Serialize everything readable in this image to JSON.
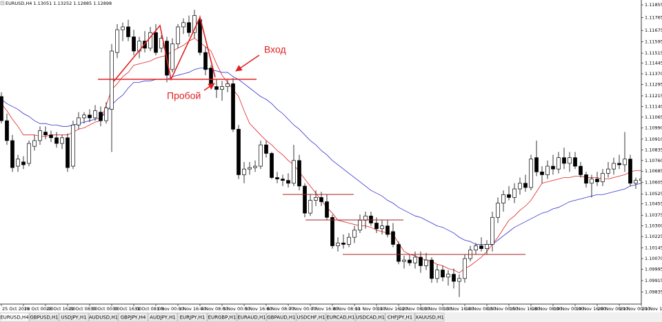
{
  "header": "EURUSD,H4  1.13051 1.13252 1.12885 1.12898",
  "tabs": [
    "EURUSD,H4",
    "GBPUSD,H1",
    "USDJPY,H1",
    "AUDUSD,H1",
    "GBPJPY,H4",
    "AUDJPY,H1",
    "EURJPY,H1",
    "EURGBP,H1",
    "EURAUD,H1",
    "GBPAUD,H1",
    "USDCHF,H1",
    "EURCAD,H1",
    "USDCAD,H1",
    "CHFJPY,H1",
    "XAUUSD,H1"
  ],
  "chart_data": {
    "type": "candlestick",
    "annotations": [
      "Вход",
      "Пробой"
    ],
    "categories": [
      "25 Oct 2019",
      null,
      null,
      null,
      "28 Oct 00:00",
      null,
      null,
      null,
      "28 Oct 16:00",
      null,
      null,
      null,
      "29 Oct 08:00",
      null,
      null,
      null,
      "30 Oct 00:00",
      null,
      null,
      null,
      "30 Oct 16:00",
      null,
      null,
      null,
      "31 Oct 08:00",
      null,
      null,
      null,
      "1 Nov 00:00",
      null,
      null,
      null,
      "1 Nov 16:00",
      null,
      null,
      null,
      "4 Nov 08:00",
      null,
      null,
      null,
      "5 Nov 00:00",
      null,
      null,
      null,
      "5 Nov 16:00",
      null,
      null,
      null,
      "6 Nov 08:00",
      null,
      null,
      null,
      "7 Nov 00:00",
      null,
      null,
      null,
      "7 Nov 16:00",
      null,
      null,
      null,
      "8 Nov 08:00",
      null,
      null,
      null,
      "11 Nov 00:00",
      null,
      null,
      null,
      "11 Nov 16:00",
      null,
      null,
      null,
      "12 Nov 08:00",
      null,
      null,
      null,
      "13 Nov 00:00",
      null,
      null,
      null,
      "13 Nov 16:00",
      null,
      null,
      null,
      "14 Nov 08:00",
      null,
      null,
      null,
      "15 Nov 00:00",
      null,
      null,
      null,
      "15 Nov 16:00",
      null,
      null,
      null,
      "18 Nov 08:00",
      null,
      null,
      null,
      "19 Nov 00:00",
      null,
      null,
      null,
      "19 Nov 16:00",
      null,
      null,
      null,
      "20 Nov 08:00",
      null,
      null,
      null,
      "21 Nov 00:00",
      null,
      null,
      null,
      "21 Nov 16:00"
    ],
    "ohlc": [
      [
        1.1121,
        1.1124,
        1.1102,
        1.1104
      ],
      [
        1.1104,
        1.1109,
        1.1087,
        1.109
      ],
      [
        1.109,
        1.1094,
        1.1068,
        1.1071
      ],
      [
        1.1072,
        1.108,
        1.1068,
        1.1077
      ],
      [
        1.1075,
        1.1079,
        1.107,
        1.1073
      ],
      [
        1.1074,
        1.109,
        1.1072,
        1.1088
      ],
      [
        1.1086,
        1.1094,
        1.1083,
        1.109
      ],
      [
        1.109,
        1.11,
        1.1087,
        1.1097
      ],
      [
        1.1096,
        1.11,
        1.1091,
        1.1094
      ],
      [
        1.1094,
        1.1097,
        1.1089,
        1.1092
      ],
      [
        1.1092,
        1.1096,
        1.1085,
        1.1088
      ],
      [
        1.1088,
        1.1094,
        1.1084,
        1.1092
      ],
      [
        1.1092,
        1.1095,
        1.1068,
        1.1071
      ],
      [
        1.1072,
        1.1104,
        1.107,
        1.1101
      ],
      [
        1.1101,
        1.111,
        1.1098,
        1.1106
      ],
      [
        1.1106,
        1.111,
        1.1102,
        1.1108
      ],
      [
        1.1108,
        1.1112,
        1.1103,
        1.1106
      ],
      [
        1.1106,
        1.1115,
        1.1104,
        1.1111
      ],
      [
        1.111,
        1.1114,
        1.11,
        1.1104
      ],
      [
        1.1104,
        1.1117,
        1.1102,
        1.1113
      ],
      [
        1.1112,
        1.1158,
        1.1082,
        1.1153
      ],
      [
        1.1152,
        1.1172,
        1.1148,
        1.1168
      ],
      [
        1.1168,
        1.1173,
        1.116,
        1.117
      ],
      [
        1.117,
        1.1175,
        1.116,
        1.1163
      ],
      [
        1.1163,
        1.1168,
        1.115,
        1.1153
      ],
      [
        1.1153,
        1.1163,
        1.1148,
        1.116
      ],
      [
        1.116,
        1.1167,
        1.1152,
        1.1155
      ],
      [
        1.1155,
        1.117,
        1.1153,
        1.1166
      ],
      [
        1.1166,
        1.1172,
        1.115,
        1.1152
      ],
      [
        1.1155,
        1.1164,
        1.1152,
        1.1162
      ],
      [
        1.116,
        1.1163,
        1.1131,
        1.1136
      ],
      [
        1.114,
        1.1162,
        1.1138,
        1.1158
      ],
      [
        1.1158,
        1.1172,
        1.1155,
        1.117
      ],
      [
        1.117,
        1.1176,
        1.1165,
        1.1173
      ],
      [
        1.1173,
        1.1178,
        1.1163,
        1.1166
      ],
      [
        1.1166,
        1.1182,
        1.1162,
        1.1178
      ],
      [
        1.1175,
        1.1178,
        1.115,
        1.1152
      ],
      [
        1.1152,
        1.1156,
        1.1136,
        1.114
      ],
      [
        1.1141,
        1.1143,
        1.1126,
        1.1128
      ],
      [
        1.1128,
        1.1133,
        1.112,
        1.1126
      ],
      [
        1.1126,
        1.1132,
        1.1118,
        1.1128
      ],
      [
        1.1128,
        1.1133,
        1.1124,
        1.113
      ],
      [
        1.113,
        1.1134,
        1.1096,
        1.1098
      ],
      [
        1.1098,
        1.1101,
        1.1063,
        1.1066
      ],
      [
        1.1066,
        1.1075,
        1.106,
        1.107
      ],
      [
        1.107,
        1.1075,
        1.1066,
        1.1071
      ],
      [
        1.1071,
        1.1076,
        1.1068,
        1.1072
      ],
      [
        1.1072,
        1.109,
        1.107,
        1.1087
      ],
      [
        1.1087,
        1.109,
        1.1078,
        1.1081
      ],
      [
        1.1081,
        1.1082,
        1.1063,
        1.1064
      ],
      [
        1.1064,
        1.1068,
        1.106,
        1.1063
      ],
      [
        1.1063,
        1.1066,
        1.1058,
        1.1062
      ],
      [
        1.1062,
        1.1067,
        1.1057,
        1.106
      ],
      [
        1.106,
        1.1087,
        1.1058,
        1.1076
      ],
      [
        1.1076,
        1.108,
        1.1055,
        1.1058
      ],
      [
        1.1058,
        1.106,
        1.1036,
        1.1039
      ],
      [
        1.1039,
        1.1052,
        1.1037,
        1.1048
      ],
      [
        1.1048,
        1.1055,
        1.1044,
        1.105
      ],
      [
        1.105,
        1.1054,
        1.1044,
        1.1047
      ],
      [
        1.1047,
        1.1052,
        1.1034,
        1.1036
      ],
      [
        1.1036,
        1.1038,
        1.1014,
        1.1016
      ],
      [
        1.1016,
        1.1022,
        1.1012,
        1.1018
      ],
      [
        1.1018,
        1.1024,
        1.1014,
        1.1017
      ],
      [
        1.1017,
        1.1025,
        1.1015,
        1.1022
      ],
      [
        1.1022,
        1.103,
        1.1018,
        1.1027
      ],
      [
        1.1027,
        1.1038,
        1.1025,
        1.1034
      ],
      [
        1.1034,
        1.104,
        1.1028,
        1.1037
      ],
      [
        1.1037,
        1.104,
        1.103,
        1.1032
      ],
      [
        1.1032,
        1.1036,
        1.1025,
        1.1028
      ],
      [
        1.1028,
        1.1034,
        1.1024,
        1.103
      ],
      [
        1.103,
        1.1034,
        1.1022,
        1.1024
      ],
      [
        1.1026,
        1.1032,
        1.1015,
        1.1017
      ],
      [
        1.1017,
        1.1019,
        1.1003,
        1.1005
      ],
      [
        1.1005,
        1.1009,
        1.1,
        1.1006
      ],
      [
        1.1006,
        1.101,
        1.1002,
        1.1004
      ],
      [
        1.1004,
        1.1012,
        1.1,
        1.1008
      ],
      [
        1.1008,
        1.1012,
        1.0997,
        1.1002
      ],
      [
        1.1002,
        1.1011,
        1.0999,
        1.1006
      ],
      [
        1.1006,
        1.1008,
        1.099,
        1.0993
      ],
      [
        1.0993,
        1.1003,
        1.099,
        1.0999
      ],
      [
        1.0999,
        1.1002,
        1.0991,
        1.0994
      ],
      [
        1.0994,
        1.0999,
        1.0988,
        1.0996
      ],
      [
        1.0996,
        1.1,
        1.0986,
        1.0991
      ],
      [
        1.0991,
        1.0996,
        1.098,
        1.0993
      ],
      [
        1.0993,
        1.101,
        1.099,
        1.1007
      ],
      [
        1.1007,
        1.1016,
        1.1005,
        1.1013
      ],
      [
        1.1013,
        1.1018,
        1.101,
        1.1016
      ],
      [
        1.1016,
        1.1022,
        1.1012,
        1.1014
      ],
      [
        1.1014,
        1.102,
        1.101,
        1.1017
      ],
      [
        1.1017,
        1.104,
        1.1012,
        1.1036
      ],
      [
        1.1036,
        1.105,
        1.1032,
        1.1046
      ],
      [
        1.1046,
        1.1055,
        1.104,
        1.1052
      ],
      [
        1.1052,
        1.1058,
        1.1048,
        1.105
      ],
      [
        1.105,
        1.106,
        1.1046,
        1.1056
      ],
      [
        1.1056,
        1.1064,
        1.1052,
        1.106
      ],
      [
        1.106,
        1.1066,
        1.1054,
        1.1057
      ],
      [
        1.1057,
        1.108,
        1.1055,
        1.1077
      ],
      [
        1.1078,
        1.109,
        1.1065,
        1.1068
      ],
      [
        1.1068,
        1.1072,
        1.106,
        1.1066
      ],
      [
        1.1066,
        1.1076,
        1.1063,
        1.1072
      ],
      [
        1.1072,
        1.108,
        1.1066,
        1.107
      ],
      [
        1.107,
        1.1082,
        1.1067,
        1.1078
      ],
      [
        1.1078,
        1.1085,
        1.107,
        1.1074
      ],
      [
        1.1074,
        1.1082,
        1.1068,
        1.1078
      ],
      [
        1.1078,
        1.1082,
        1.107,
        1.1072
      ],
      [
        1.1072,
        1.1075,
        1.1064,
        1.1066
      ],
      [
        1.1066,
        1.1068,
        1.1057,
        1.106
      ],
      [
        1.106,
        1.1066,
        1.105,
        1.1063
      ],
      [
        1.1063,
        1.1068,
        1.1058,
        1.1061
      ],
      [
        1.1061,
        1.107,
        1.1058,
        1.1067
      ],
      [
        1.1067,
        1.1075,
        1.1064,
        1.107
      ],
      [
        1.107,
        1.1078,
        1.1066,
        1.1074
      ],
      [
        1.1074,
        1.108,
        1.107,
        1.1073
      ],
      [
        1.1073,
        1.1096,
        1.1068,
        1.1077
      ],
      [
        1.1077,
        1.108,
        1.1058,
        1.106
      ],
      [
        1.106,
        1.1064,
        1.1056,
        1.1062
      ],
      [
        1.1062,
        1.1065,
        1.1059,
        1.1063
      ]
    ],
    "lines": [
      {
        "color": "#e02020",
        "values": [
          1.1116,
          1.1111,
          1.1105,
          1.11,
          1.1094,
          1.1094,
          1.1094,
          1.1093,
          1.1093,
          1.1094,
          1.1094,
          1.1094,
          1.1094,
          1.1096,
          1.1098,
          1.1099,
          1.1101,
          1.1103,
          1.1104,
          1.1115,
          1.1126,
          1.113,
          1.1135,
          1.1138,
          1.1143,
          1.1144,
          1.1145,
          1.1146,
          1.1148,
          1.1149,
          1.115,
          1.1153,
          1.1155,
          1.1157,
          1.116,
          1.1162,
          1.1159,
          1.1156,
          1.1153,
          1.1144,
          1.1136,
          1.1131,
          1.1126,
          1.1121,
          1.1111,
          1.1102,
          1.1098,
          1.1094,
          1.109,
          1.1087,
          1.1083,
          1.108,
          1.1076,
          1.1073,
          1.1068,
          1.1063,
          1.1058,
          1.1053,
          1.1048,
          1.1043,
          1.1039,
          1.1034,
          1.1033,
          1.1032,
          1.1031,
          1.103,
          1.103,
          1.1029,
          1.1027,
          1.1026,
          1.1025,
          1.1024,
          1.1018,
          1.1012,
          1.101,
          1.1009,
          1.1007,
          1.1006,
          1.1005,
          1.1003,
          1.1002,
          1.1,
          1.0999,
          1.0997,
          1.1,
          1.1002,
          1.1005,
          1.1008,
          1.1012,
          1.1017,
          1.1022,
          1.1028,
          1.1034,
          1.1037,
          1.1041,
          1.1044,
          1.1048,
          1.1054,
          1.106,
          1.1061,
          1.1062,
          1.1063,
          1.1064,
          1.1064,
          1.1065,
          1.1065,
          1.1064,
          1.1064,
          1.1064,
          1.1063,
          1.1063,
          1.1064,
          1.1065,
          1.1066,
          1.1068,
          1.1069,
          1.1069
        ]
      },
      {
        "color": "#3030d0",
        "values": [
          1.1119,
          1.1116,
          1.1114,
          1.1112,
          1.1109,
          1.1107,
          1.1104,
          1.1102,
          1.1102,
          1.1101,
          1.1101,
          1.11,
          1.11,
          1.1101,
          1.1102,
          1.1103,
          1.1104,
          1.1105,
          1.1106,
          1.111,
          1.1115,
          1.1119,
          1.1122,
          1.1127,
          1.1131,
          1.1131,
          1.1132,
          1.1132,
          1.1133,
          1.1133,
          1.1133,
          1.1135,
          1.1136,
          1.1137,
          1.1138,
          1.114,
          1.1141,
          1.1141,
          1.114,
          1.1139,
          1.1138,
          1.1138,
          1.1135,
          1.1133,
          1.113,
          1.1127,
          1.1124,
          1.1121,
          1.1119,
          1.1116,
          1.1112,
          1.1109,
          1.1105,
          1.1101,
          1.1098,
          1.1094,
          1.109,
          1.1087,
          1.1083,
          1.108,
          1.1076,
          1.1073,
          1.107,
          1.1067,
          1.1064,
          1.1061,
          1.1058,
          1.1055,
          1.1053,
          1.1051,
          1.1048,
          1.1046,
          1.1043,
          1.1041,
          1.1039,
          1.1037,
          1.1036,
          1.1034,
          1.1032,
          1.103,
          1.1029,
          1.1027,
          1.1025,
          1.1022,
          1.102,
          1.1019,
          1.1017,
          1.1017,
          1.1017,
          1.1017,
          1.102,
          1.1023,
          1.1026,
          1.1029,
          1.1031,
          1.1033,
          1.1035,
          1.1037,
          1.1039,
          1.104,
          1.1042,
          1.1043,
          1.1045,
          1.1047,
          1.1048,
          1.1049,
          1.105,
          1.1051,
          1.1052,
          1.1052,
          1.1053,
          1.1054,
          1.1055,
          1.1056,
          1.1058,
          1.1059,
          1.106
        ]
      }
    ],
    "ylim": [
      1.09755,
      1.11889
    ],
    "yticks": [
      1.11855,
      1.11765,
      1.11675,
      1.11595,
      1.11515,
      1.11445,
      {
        "value": 1.1137,
        "label": "1.11370"
      },
      1.11295,
      1.11215,
      {
        "value": 1.1114,
        "label": "1.11140"
      },
      1.11065,
      {
        "value": 1.1099,
        "label": "1.10990"
      },
      {
        "value": 1.1091,
        "label": "1.10910"
      },
      1.10835,
      {
        "value": 1.1076,
        "label": "1.10760"
      },
      1.10685,
      1.10605,
      1.10525,
      1.10455,
      1.10375,
      {
        "value": 1.103,
        "label": "1.10300"
      },
      1.10225,
      1.10145,
      {
        "value": 1.1007,
        "label": "1.10070"
      },
      1.09995,
      1.09915,
      1.09835
    ],
    "bull_color": "#ffffff",
    "bear_color": "#000000"
  }
}
